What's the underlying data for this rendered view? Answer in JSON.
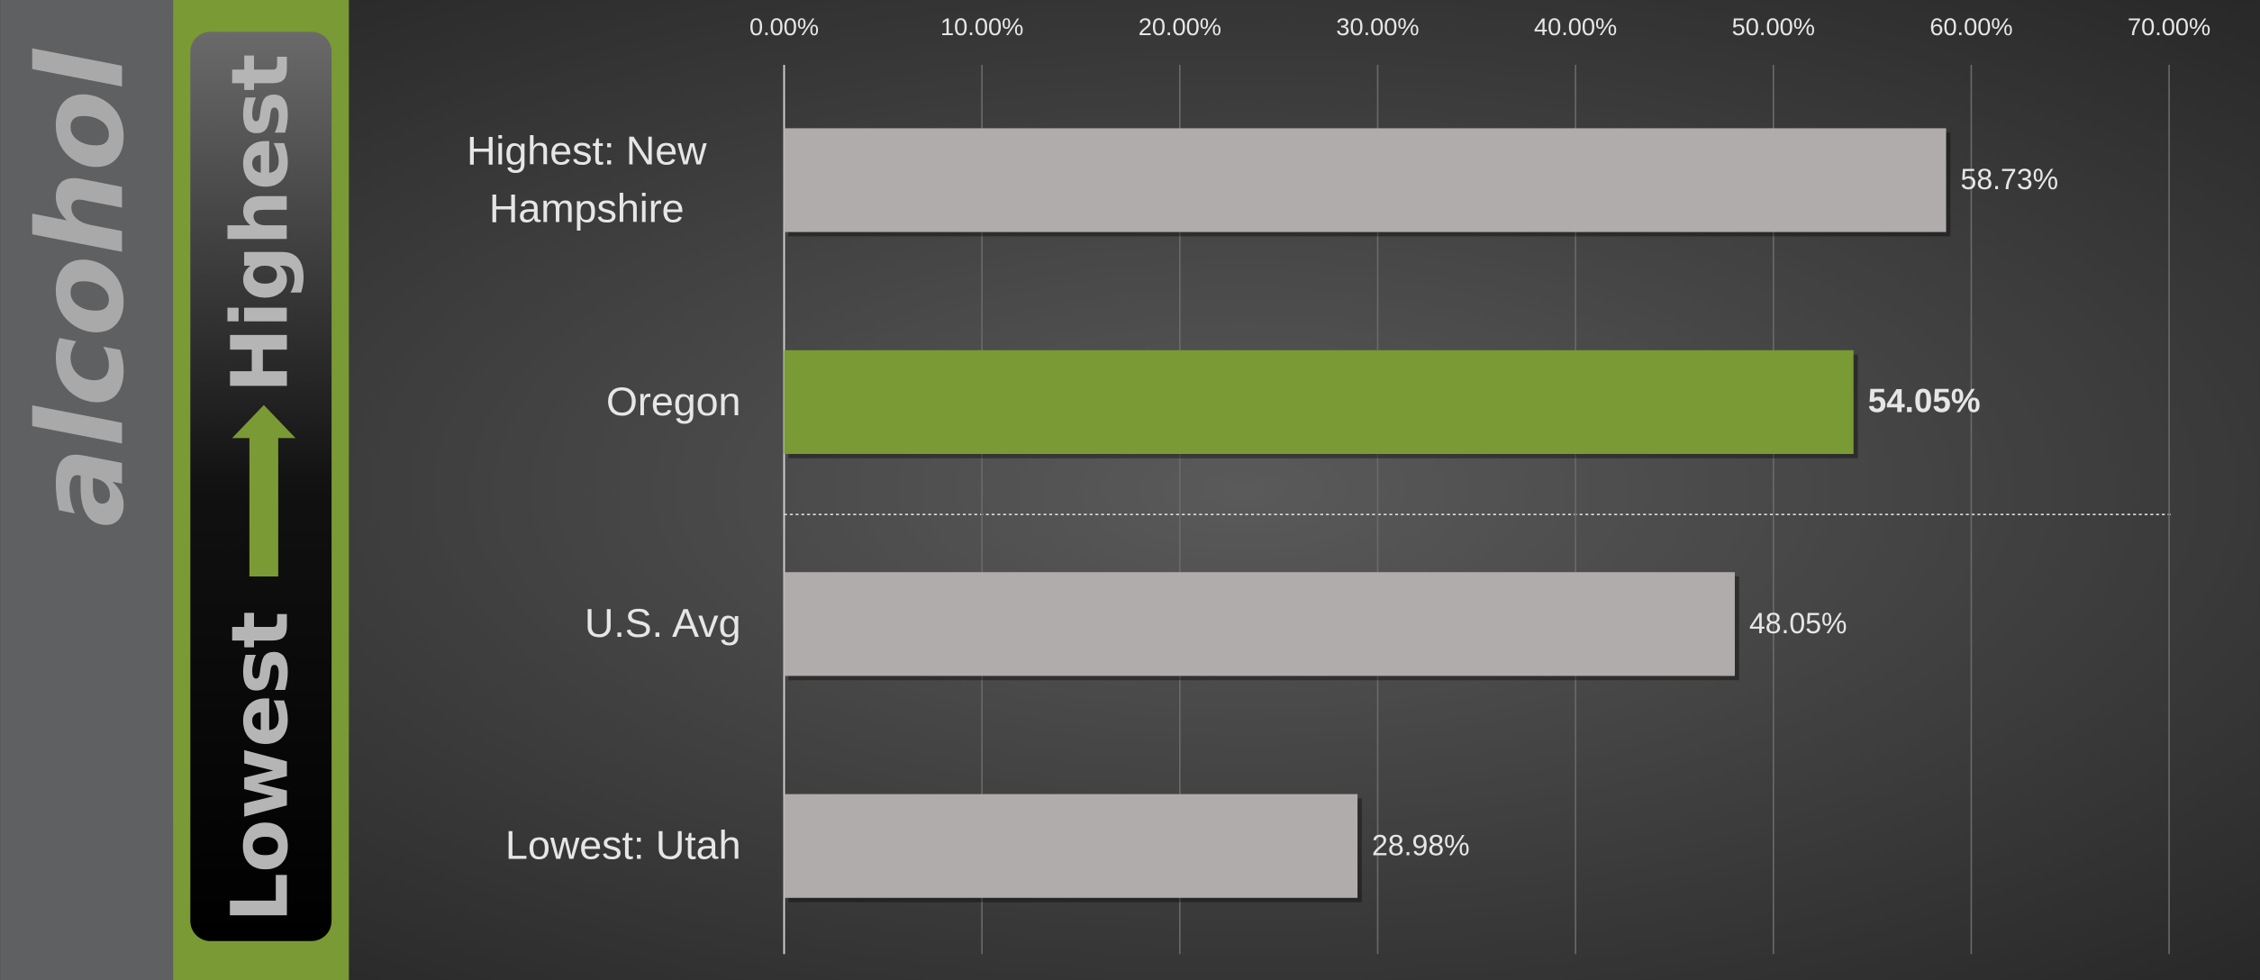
{
  "side_title": "alcohol",
  "scale_low": "Lowest",
  "scale_high": "Highest",
  "chart_data": {
    "type": "bar",
    "orientation": "horizontal",
    "categories": [
      "Highest: New Hampshire",
      "Oregon",
      "U.S. Avg",
      "Lowest: Utah"
    ],
    "values": [
      58.73,
      54.05,
      48.05,
      28.98
    ],
    "value_labels": [
      "58.73%",
      "54.05%",
      "48.05%",
      "28.98%"
    ],
    "color": "#b0acab",
    "bar_colors": [
      "#b0acab",
      "#7a9a35",
      "#b0acab",
      "#b0acab"
    ],
    "xlim": [
      0,
      70
    ],
    "xticks": [
      {
        "value": 0,
        "label": "0.00%"
      },
      {
        "value": 10,
        "label": "10.00%"
      },
      {
        "value": 20,
        "label": "20.00%"
      },
      {
        "value": 30,
        "label": "30.00%"
      },
      {
        "value": 40,
        "label": "40.00%"
      },
      {
        "value": 50,
        "label": "50.00%"
      },
      {
        "value": 60,
        "label": "60.00%"
      },
      {
        "value": 70,
        "label": "70.00%"
      }
    ],
    "grid": true
  }
}
